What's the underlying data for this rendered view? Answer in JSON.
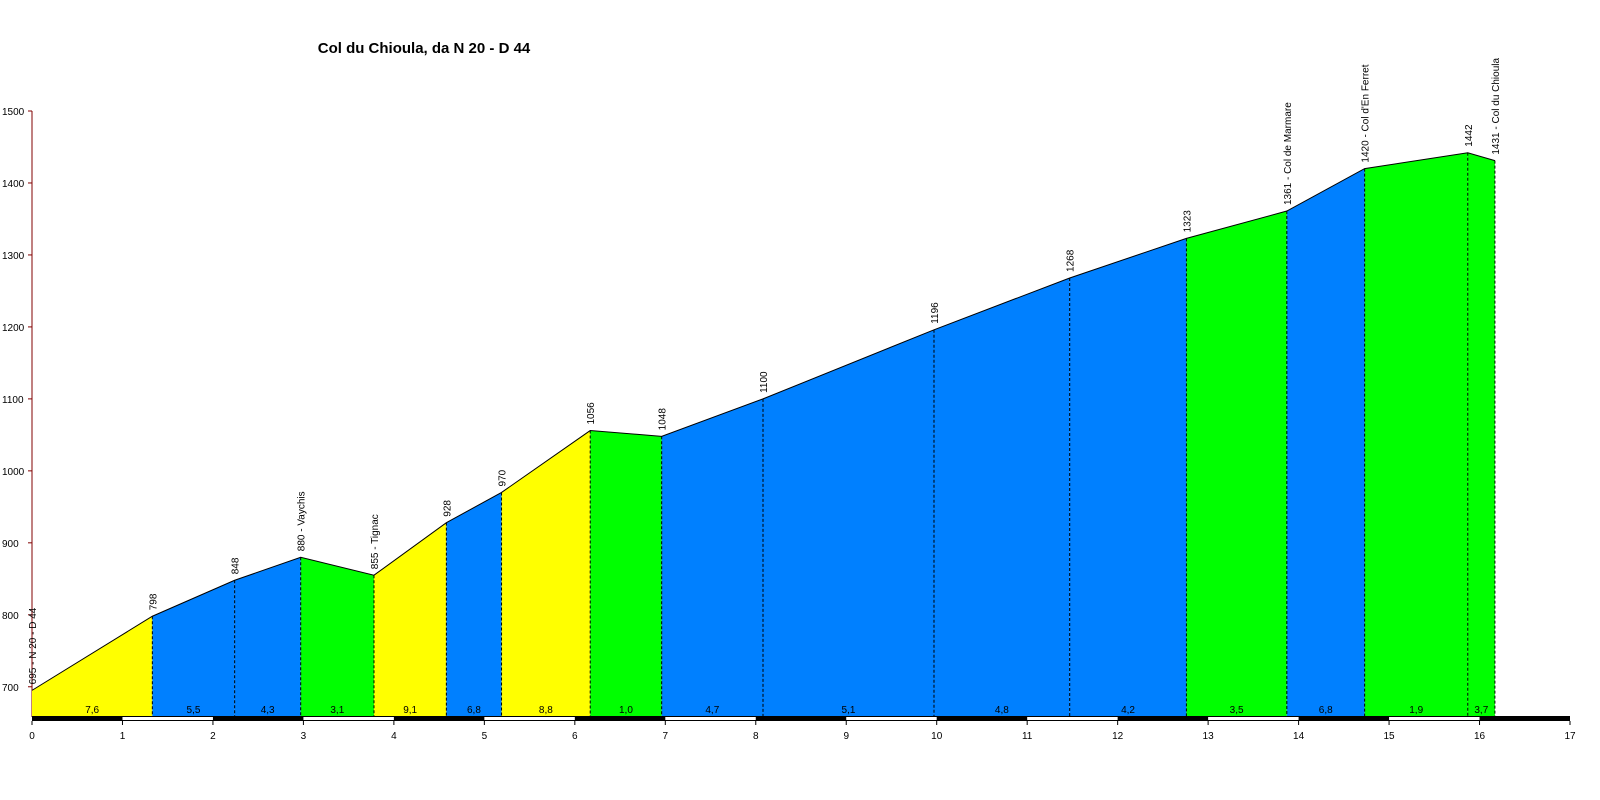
{
  "chart_data": {
    "type": "elevation-profile",
    "title": "Col du Chioula, da N 20 - D 44",
    "x": [
      0,
      1.33,
      2.24,
      2.97,
      3.78,
      4.58,
      5.19,
      6.17,
      6.96,
      8.08,
      9.97,
      11.47,
      12.76,
      13.87,
      14.73,
      15.87,
      16.17
    ],
    "values": [
      695,
      798,
      848,
      880,
      855,
      928,
      970,
      1056,
      1048,
      1100,
      1196,
      1268,
      1323,
      1361,
      1420,
      1442,
      1431
    ],
    "value_labels": [
      "695 - N 20 - D 44",
      "798",
      "848",
      "880 - Vaychis",
      "855 - Tignac",
      "928",
      "970",
      "1056",
      "1048",
      "1100",
      "1196",
      "1268",
      "1323",
      "1361 - Col de Marmare",
      "1420 - Col d'En Ferret",
      "1442",
      "1431 - Col du Chioula"
    ],
    "segments": {
      "values": [
        7.6,
        5.5,
        4.3,
        3.1,
        9.1,
        6.8,
        8.8,
        1.0,
        4.7,
        5.1,
        4.8,
        4.2,
        3.5,
        6.8,
        1.9,
        3.7
      ],
      "value_labels": [
        "7,6",
        "5,5",
        "4,3",
        "3,1",
        "9,1",
        "6,8",
        "8,8",
        "1,0",
        "4,7",
        "5,1",
        "4,8",
        "4,2",
        "3,5",
        "6,8",
        "1,9",
        "3,7"
      ],
      "colors": [
        "#ffff00",
        "#0080ff",
        "#0080ff",
        "#00ff00",
        "#ffff00",
        "#0080ff",
        "#ffff00",
        "#00ff00",
        "#0080ff",
        "#0080ff",
        "#0080ff",
        "#0080ff",
        "#00ff00",
        "#0080ff",
        "#00ff00",
        "#00ff00"
      ]
    },
    "xlim": [
      0,
      17
    ],
    "xticks": [
      0,
      1,
      2,
      3,
      4,
      5,
      6,
      7,
      8,
      9,
      10,
      11,
      12,
      13,
      14,
      15,
      16,
      17
    ],
    "ylim": [
      658,
      1500
    ],
    "yticks": [
      700,
      800,
      900,
      1000,
      1100,
      1200,
      1300,
      1400,
      1500
    ]
  }
}
